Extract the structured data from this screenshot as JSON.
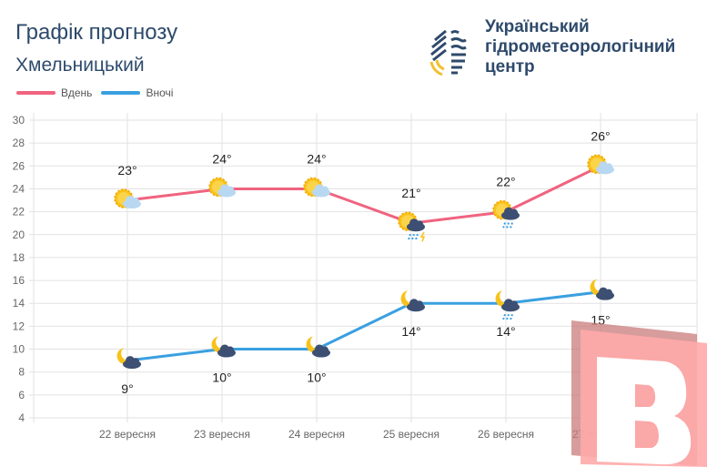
{
  "header": {
    "title": "Графік прогнозу",
    "city": "Хмельницький"
  },
  "logo": {
    "line1": "Український",
    "line2": "гідрометеорологічний",
    "line3": "центр"
  },
  "chart_data": {
    "type": "line",
    "categories": [
      "22 вересня",
      "23 вересня",
      "24 вересня",
      "25 вересня",
      "26 вересня",
      "27 вересня"
    ],
    "series": [
      {
        "name": "Вдень",
        "color": "#f0637f",
        "values": [
          23,
          24,
          24,
          21,
          22,
          26
        ],
        "labels": [
          "23°",
          "24°",
          "24°",
          "21°",
          "22°",
          "26°"
        ],
        "icons": [
          "sun-cloud",
          "sun-cloud",
          "sun-cloud",
          "sun-thunder-rain",
          "sun-cloud-rain",
          "sun-cloud"
        ]
      },
      {
        "name": "Вночі",
        "color": "#3aa0e0",
        "values": [
          9,
          10,
          10,
          14,
          14,
          15
        ],
        "labels": [
          "9°",
          "10°",
          "10°",
          "14°",
          "14°",
          "15°"
        ],
        "icons": [
          "moon-cloud",
          "moon-cloud",
          "moon-cloud",
          "moon-cloud",
          "moon-cloud-rain",
          "moon-cloud"
        ]
      }
    ],
    "yticks": [
      4,
      6,
      8,
      10,
      12,
      14,
      16,
      18,
      20,
      22,
      24,
      26,
      28,
      30
    ],
    "ylim": [
      4,
      30
    ],
    "grid": true,
    "legend": "top-left"
  }
}
